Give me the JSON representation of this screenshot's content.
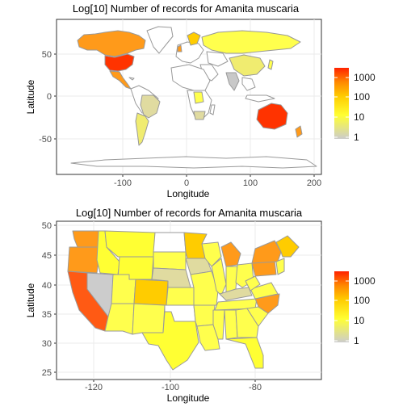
{
  "colors": {
    "panel_border": "#333333",
    "grid": "#ebebeb",
    "world_outline": "#999999",
    "state_outline": "#9a9a9a",
    "scale": [
      "#cccccc",
      "#ffff33",
      "#ffcc00",
      "#ff8800",
      "#ff2200"
    ]
  },
  "world_map": {
    "title": "Log[10]  Number of records for Amanita muscaria",
    "xlabel": "Longitude",
    "ylabel": "Latitude",
    "x_ticks": [
      "-100",
      "0",
      "100",
      "200"
    ],
    "y_ticks": [
      "50",
      "0",
      "-50"
    ],
    "legend_labels": [
      "1000",
      "100",
      "10",
      "1"
    ]
  },
  "usa_map": {
    "title": "Log[10]  Number of records for Amanita muscaria",
    "xlabel": "Longitude",
    "ylabel": "Latitude",
    "x_ticks": [
      "-120",
      "-100",
      "-80"
    ],
    "y_ticks": [
      "50",
      "45",
      "40",
      "35",
      "30",
      "25"
    ],
    "legend_labels": [
      "1000",
      "100",
      "10",
      "1"
    ]
  },
  "chart_data": [
    {
      "type": "choropleth",
      "title": "Log[10]  Number of records for Amanita muscaria",
      "xlabel": "Longitude",
      "ylabel": "Latitude",
      "xlim": [
        -195,
        205
      ],
      "ylim": [
        -90,
        88
      ],
      "legend": {
        "title": "",
        "breaks": [
          1,
          10,
          100,
          1000
        ],
        "placement": "right"
      },
      "regions": [
        {
          "name": "USA",
          "value": 1000
        },
        {
          "name": "Canada",
          "value": 300
        },
        {
          "name": "Mexico",
          "value": 250
        },
        {
          "name": "Australia",
          "value": 1000
        },
        {
          "name": "Russia",
          "value": 40
        },
        {
          "name": "China",
          "value": 20
        },
        {
          "name": "Brazil",
          "value": 3
        },
        {
          "name": "Argentina",
          "value": 30
        },
        {
          "name": "India",
          "value": 1
        },
        {
          "name": "South Africa",
          "value": 3
        },
        {
          "name": "New Zealand",
          "value": 200
        },
        {
          "name": "Scandinavia",
          "value": 200
        }
      ]
    },
    {
      "type": "choropleth",
      "title": "Log[10]  Number of records for Amanita muscaria",
      "xlabel": "Longitude",
      "ylabel": "Latitude",
      "xlim": [
        -127,
        -65
      ],
      "ylim": [
        24.5,
        50.3
      ],
      "legend": {
        "title": "",
        "breaks": [
          1,
          10,
          100,
          1000
        ],
        "placement": "right"
      },
      "regions": [
        {
          "name": "Washington",
          "value": 700
        },
        {
          "name": "Oregon",
          "value": 500
        },
        {
          "name": "California",
          "value": 1000
        },
        {
          "name": "Nevada",
          "value": 1
        },
        {
          "name": "Idaho",
          "value": 60
        },
        {
          "name": "Montana",
          "value": 40
        },
        {
          "name": "Wyoming",
          "value": 30
        },
        {
          "name": "Utah",
          "value": 40
        },
        {
          "name": "Arizona",
          "value": 40
        },
        {
          "name": "Colorado",
          "value": 200
        },
        {
          "name": "New Mexico",
          "value": 30
        },
        {
          "name": "North Dakota",
          "value": 0
        },
        {
          "name": "South Dakota",
          "value": 40
        },
        {
          "name": "Nebraska",
          "value": 5
        },
        {
          "name": "Kansas",
          "value": 40
        },
        {
          "name": "Oklahoma",
          "value": 0
        },
        {
          "name": "Texas",
          "value": 40
        },
        {
          "name": "Minnesota",
          "value": 250
        },
        {
          "name": "Iowa",
          "value": 5
        },
        {
          "name": "Missouri",
          "value": 40
        },
        {
          "name": "Arkansas",
          "value": 40
        },
        {
          "name": "Louisiana",
          "value": 40
        },
        {
          "name": "Wisconsin",
          "value": 40
        },
        {
          "name": "Illinois",
          "value": 40
        },
        {
          "name": "Michigan",
          "value": 500
        },
        {
          "name": "Indiana",
          "value": 40
        },
        {
          "name": "Ohio",
          "value": 40
        },
        {
          "name": "Kentucky",
          "value": 5
        },
        {
          "name": "Tennessee",
          "value": 40
        },
        {
          "name": "Mississippi",
          "value": 40
        },
        {
          "name": "Alabama",
          "value": 40
        },
        {
          "name": "Georgia",
          "value": 40
        },
        {
          "name": "Florida",
          "value": 40
        },
        {
          "name": "South Carolina",
          "value": 40
        },
        {
          "name": "North Carolina",
          "value": 500
        },
        {
          "name": "Virginia",
          "value": 40
        },
        {
          "name": "West Virginia",
          "value": 40
        },
        {
          "name": "Pennsylvania",
          "value": 500
        },
        {
          "name": "New York",
          "value": 500
        },
        {
          "name": "New England",
          "value": 300
        }
      ]
    }
  ]
}
